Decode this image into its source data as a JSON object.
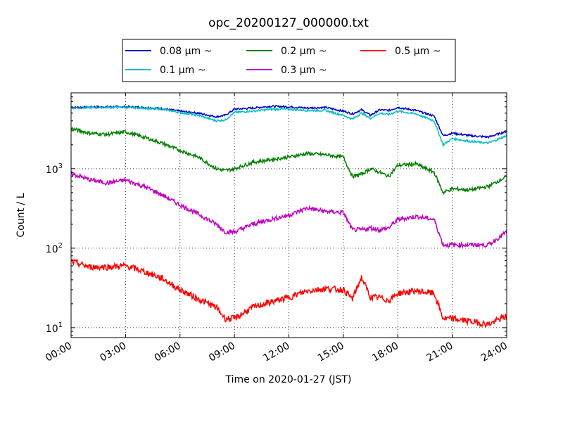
{
  "chart_data": {
    "type": "line",
    "title": "opc_20200127_000000.txt",
    "xlabel": "Time on 2020-01-27 (JST)",
    "ylabel": "Count / L",
    "yscale": "log",
    "xlim": [
      "00:00",
      "24:00"
    ],
    "ylim": [
      7.5,
      9000
    ],
    "grid": true,
    "legend_position": "top-center",
    "x_ticks": [
      "00:00",
      "03:00",
      "06:00",
      "09:00",
      "12:00",
      "15:00",
      "18:00",
      "21:00",
      "24:00"
    ],
    "y_ticks": [
      {
        "value": 10,
        "base": "10",
        "exp": "1"
      },
      {
        "value": 100,
        "base": "10",
        "exp": "2"
      },
      {
        "value": 1000,
        "base": "10",
        "exp": "3"
      }
    ],
    "x_hours": [
      0,
      1,
      2,
      3,
      4,
      5,
      6,
      7,
      8,
      8.5,
      9,
      10,
      11,
      12,
      13,
      14,
      15,
      15.5,
      16,
      16.5,
      17,
      17.5,
      18,
      19,
      20,
      20.5,
      21,
      22,
      23,
      24
    ],
    "series": [
      {
        "name": "0.08 μm ~",
        "color": "#0000cc",
        "values": [
          5900,
          5950,
          6000,
          6000,
          5900,
          5700,
          5300,
          5000,
          4500,
          4700,
          5600,
          5800,
          6100,
          6000,
          5800,
          5900,
          5300,
          4900,
          5500,
          4700,
          5500,
          5400,
          5900,
          5400,
          4600,
          2600,
          2800,
          2600,
          2500,
          2950
        ]
      },
      {
        "name": "0.1 μm ~",
        "color": "#00bfbf",
        "values": [
          5800,
          5850,
          5900,
          5900,
          5800,
          5600,
          5100,
          4700,
          4000,
          4100,
          5100,
          5300,
          5600,
          5600,
          5400,
          5400,
          4700,
          4200,
          5000,
          4300,
          5000,
          4800,
          5300,
          4900,
          4000,
          2000,
          2400,
          2200,
          2100,
          2600
        ]
      },
      {
        "name": "0.2 μm ~",
        "color": "#008000",
        "values": [
          3200,
          2800,
          2700,
          2900,
          2500,
          2100,
          1700,
          1400,
          1000,
          950,
          1000,
          1200,
          1300,
          1400,
          1550,
          1500,
          1400,
          800,
          850,
          1000,
          900,
          800,
          1100,
          1150,
          900,
          500,
          560,
          540,
          600,
          800
        ]
      },
      {
        "name": "0.3 μm ~",
        "color": "#bf00bf",
        "values": [
          870,
          730,
          660,
          720,
          600,
          470,
          350,
          270,
          200,
          160,
          160,
          200,
          230,
          260,
          320,
          290,
          280,
          170,
          170,
          180,
          170,
          180,
          230,
          250,
          230,
          110,
          110,
          110,
          110,
          160
        ]
      },
      {
        "name": "0.5 μm ~",
        "color": "#ff0000",
        "values": [
          68,
          58,
          58,
          60,
          51,
          42,
          30,
          23,
          18,
          13,
          13,
          18,
          21,
          24,
          29,
          31,
          30,
          23,
          43,
          24,
          24,
          22,
          27,
          29,
          27,
          13,
          13,
          12,
          11,
          14
        ]
      }
    ]
  }
}
